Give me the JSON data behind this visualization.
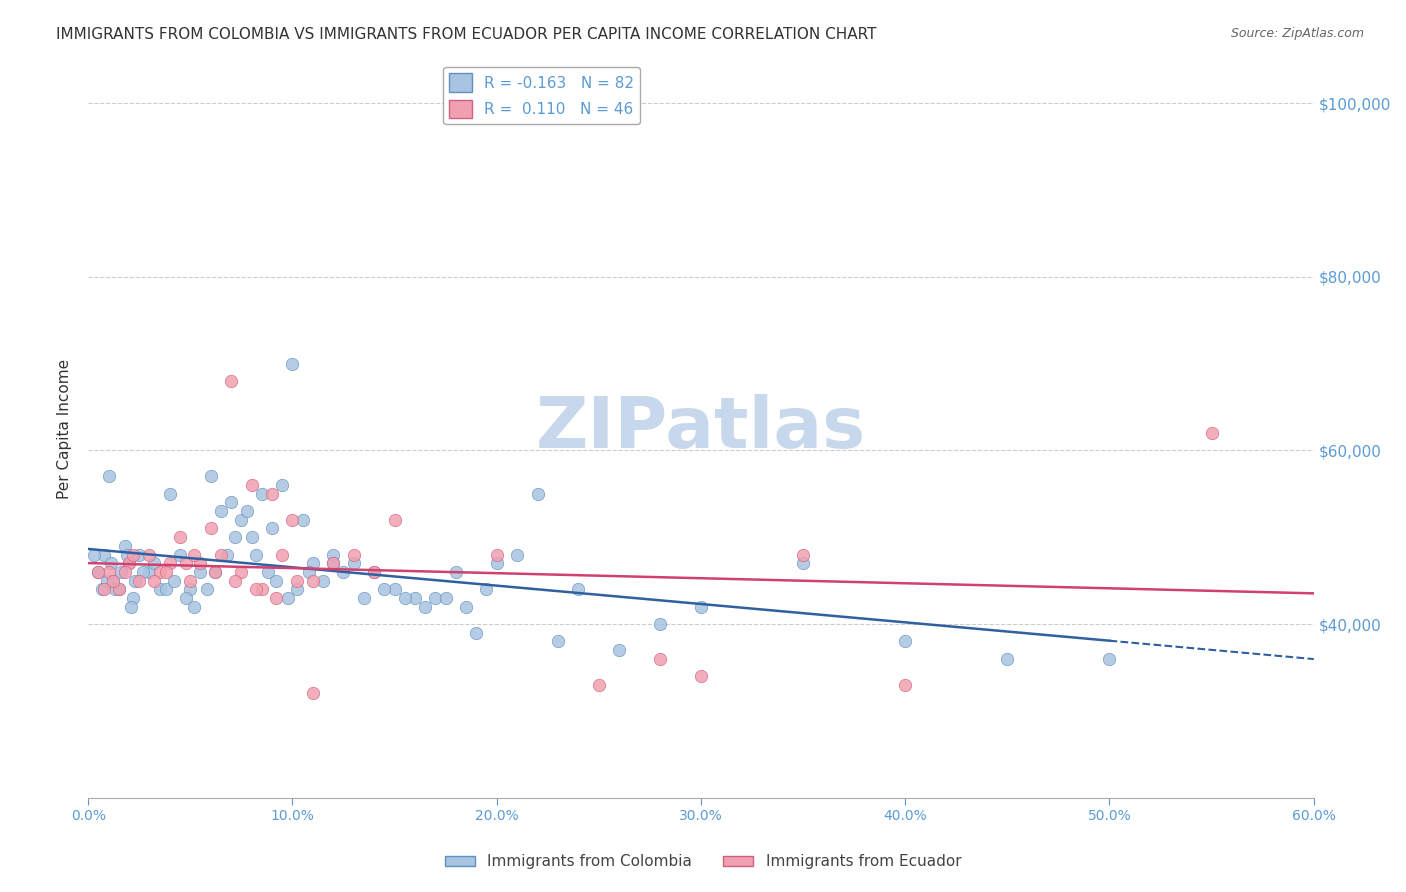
{
  "title": "IMMIGRANTS FROM COLOMBIA VS IMMIGRANTS FROM ECUADOR PER CAPITA INCOME CORRELATION CHART",
  "source": "Source: ZipAtlas.com",
  "ylabel": "Per Capita Income",
  "xlabel": "",
  "xlim": [
    0.0,
    0.6
  ],
  "ylim": [
    20000,
    105000
  ],
  "yticks": [
    40000,
    60000,
    80000,
    100000
  ],
  "ytick_labels": [
    "$40,000",
    "$60,000",
    "$80,000",
    "$100,000"
  ],
  "xticks": [
    0.0,
    0.1,
    0.2,
    0.3,
    0.4,
    0.5,
    0.6
  ],
  "xtick_labels": [
    "0.0%",
    "10.0%",
    "20.0%",
    "30.0%",
    "40.0%",
    "50.0%",
    "60.0%"
  ],
  "colombia_color": "#a8c4e0",
  "ecuador_color": "#f0a0b0",
  "colombia_edge": "#6090c0",
  "ecuador_edge": "#d06080",
  "trend_colombia_color": "#3060a0",
  "trend_ecuador_color": "#d04070",
  "colombia_R": -0.163,
  "colombia_N": 82,
  "ecuador_R": 0.11,
  "ecuador_N": 46,
  "watermark": "ZIPatlas",
  "watermark_color": "#c8d8ec",
  "colombia_scatter_x": [
    0.02,
    0.015,
    0.025,
    0.03,
    0.01,
    0.008,
    0.012,
    0.018,
    0.022,
    0.035,
    0.04,
    0.045,
    0.05,
    0.055,
    0.06,
    0.065,
    0.07,
    0.075,
    0.08,
    0.085,
    0.09,
    0.095,
    0.1,
    0.105,
    0.11,
    0.115,
    0.12,
    0.125,
    0.13,
    0.14,
    0.15,
    0.16,
    0.17,
    0.18,
    0.19,
    0.2,
    0.22,
    0.24,
    0.26,
    0.28,
    0.3,
    0.35,
    0.4,
    0.45,
    0.5,
    0.003,
    0.005,
    0.007,
    0.009,
    0.011,
    0.013,
    0.016,
    0.019,
    0.021,
    0.023,
    0.027,
    0.032,
    0.038,
    0.042,
    0.048,
    0.052,
    0.058,
    0.062,
    0.068,
    0.072,
    0.078,
    0.082,
    0.088,
    0.092,
    0.098,
    0.102,
    0.108,
    0.12,
    0.135,
    0.145,
    0.155,
    0.165,
    0.175,
    0.185,
    0.195,
    0.21,
    0.23
  ],
  "colombia_scatter_y": [
    47000,
    44000,
    48000,
    46000,
    57000,
    48000,
    45000,
    49000,
    43000,
    44000,
    55000,
    48000,
    44000,
    46000,
    57000,
    53000,
    54000,
    52000,
    50000,
    55000,
    51000,
    56000,
    70000,
    52000,
    47000,
    45000,
    48000,
    46000,
    47000,
    46000,
    44000,
    43000,
    43000,
    46000,
    39000,
    47000,
    55000,
    44000,
    37000,
    40000,
    42000,
    47000,
    38000,
    36000,
    36000,
    48000,
    46000,
    44000,
    45000,
    47000,
    44000,
    46000,
    48000,
    42000,
    45000,
    46000,
    47000,
    44000,
    45000,
    43000,
    42000,
    44000,
    46000,
    48000,
    50000,
    53000,
    48000,
    46000,
    45000,
    43000,
    44000,
    46000,
    47000,
    43000,
    44000,
    43000,
    42000,
    43000,
    42000,
    44000,
    48000,
    38000
  ],
  "ecuador_scatter_x": [
    0.01,
    0.015,
    0.02,
    0.025,
    0.03,
    0.035,
    0.04,
    0.045,
    0.05,
    0.055,
    0.06,
    0.065,
    0.07,
    0.075,
    0.08,
    0.085,
    0.09,
    0.095,
    0.1,
    0.11,
    0.12,
    0.13,
    0.14,
    0.15,
    0.2,
    0.25,
    0.28,
    0.3,
    0.35,
    0.4,
    0.55,
    0.005,
    0.008,
    0.012,
    0.018,
    0.022,
    0.032,
    0.038,
    0.048,
    0.052,
    0.062,
    0.072,
    0.082,
    0.092,
    0.102,
    0.11
  ],
  "ecuador_scatter_y": [
    46000,
    44000,
    47000,
    45000,
    48000,
    46000,
    47000,
    50000,
    45000,
    47000,
    51000,
    48000,
    68000,
    46000,
    56000,
    44000,
    55000,
    48000,
    52000,
    45000,
    47000,
    48000,
    46000,
    52000,
    48000,
    33000,
    36000,
    34000,
    48000,
    33000,
    62000,
    46000,
    44000,
    45000,
    46000,
    48000,
    45000,
    46000,
    47000,
    48000,
    46000,
    45000,
    44000,
    43000,
    45000,
    32000
  ],
  "colombia_marker_size": 80,
  "ecuador_marker_size": 80,
  "background_color": "#ffffff",
  "grid_color": "#cccccc",
  "axis_color": "#5b9bd5",
  "tick_color": "#5b9bd5",
  "title_color": "#333333"
}
